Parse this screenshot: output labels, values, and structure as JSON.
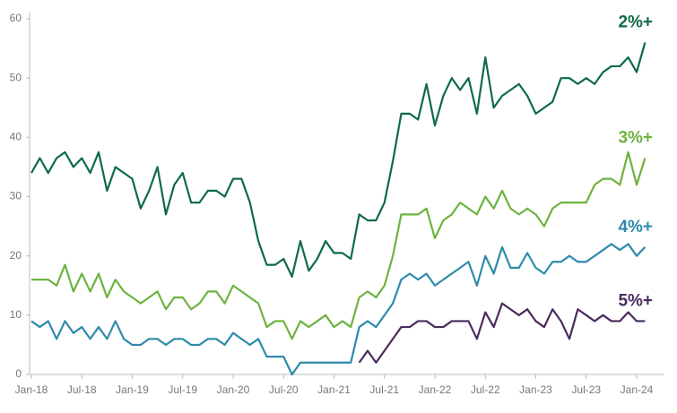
{
  "chart_data": {
    "type": "line",
    "categories": [
      "Jan-18",
      null,
      null,
      null,
      null,
      null,
      "Jul-18",
      null,
      null,
      null,
      null,
      null,
      "Jan-19",
      null,
      null,
      null,
      null,
      null,
      "Jul-19",
      null,
      null,
      null,
      null,
      null,
      "Jan-20",
      null,
      null,
      null,
      null,
      null,
      "Jul-20",
      null,
      null,
      null,
      null,
      null,
      "Jan-21",
      null,
      null,
      null,
      null,
      null,
      "Jul-21",
      null,
      null,
      null,
      null,
      null,
      "Jan-22",
      null,
      null,
      null,
      null,
      null,
      "Jul-22",
      null,
      null,
      null,
      null,
      null,
      "Jan-23",
      null,
      null,
      null,
      null,
      null,
      "Jul-23",
      null,
      null,
      null,
      null,
      null,
      "Jan-24",
      null
    ],
    "series": [
      {
        "name": "2%+",
        "color": "#0e6b45",
        "values": [
          34,
          36.5,
          34,
          36.5,
          37.5,
          35,
          36.5,
          34,
          37.5,
          31,
          35,
          34,
          33,
          28,
          31,
          35,
          27,
          32,
          34,
          29,
          29,
          31,
          31,
          30,
          33,
          33,
          29,
          22.5,
          18.5,
          18.5,
          19.5,
          16.5,
          22.5,
          17.5,
          19.5,
          22.5,
          20.5,
          20.5,
          19.5,
          27,
          26,
          26,
          29,
          36,
          44,
          44,
          43,
          49,
          42,
          47,
          50,
          48,
          50,
          44,
          53.5,
          45,
          47,
          48,
          49,
          47,
          44,
          45,
          46,
          50,
          50,
          49,
          50,
          49,
          51,
          52,
          52,
          53.5,
          51,
          56
        ]
      },
      {
        "name": "3%+",
        "color": "#6db33f",
        "values": [
          16,
          16,
          16,
          15,
          18.5,
          14,
          17,
          14,
          17,
          13,
          16,
          14,
          13,
          12,
          13,
          14,
          11,
          13,
          13,
          11,
          12,
          14,
          14,
          12,
          15,
          14,
          13,
          12,
          8,
          9,
          9,
          6,
          9,
          8,
          9,
          10,
          8,
          9,
          8,
          13,
          14,
          13,
          15,
          20,
          27,
          27,
          27,
          28,
          23,
          26,
          27,
          29,
          28,
          27,
          30,
          28,
          31,
          28,
          27,
          28,
          27,
          25,
          28,
          29,
          29,
          29,
          29,
          32,
          33,
          33,
          32,
          37.5,
          32,
          36.5
        ]
      },
      {
        "name": "4%+",
        "color": "#2e8bab",
        "values": [
          9,
          8,
          9,
          6,
          9,
          7,
          8,
          6,
          8,
          6,
          9,
          6,
          5,
          5,
          6,
          6,
          5,
          6,
          6,
          5,
          5,
          6,
          6,
          5,
          7,
          6,
          5,
          6,
          3,
          3,
          3,
          0,
          2,
          2,
          2,
          2,
          2,
          2,
          2,
          8,
          9,
          8,
          10,
          12,
          16,
          17,
          16,
          17,
          15,
          16,
          17,
          18,
          19,
          15,
          20,
          17,
          21.5,
          18,
          18,
          20.5,
          18,
          17,
          19,
          19,
          20,
          19,
          19,
          20,
          21,
          22,
          21,
          22,
          20,
          21.5
        ]
      },
      {
        "name": "5%+",
        "color": "#4b2a5e",
        "values": [
          null,
          null,
          null,
          null,
          null,
          null,
          null,
          null,
          null,
          null,
          null,
          null,
          null,
          null,
          null,
          null,
          null,
          null,
          null,
          null,
          null,
          null,
          null,
          null,
          null,
          null,
          null,
          null,
          null,
          null,
          null,
          null,
          null,
          null,
          null,
          null,
          null,
          null,
          null,
          2,
          4,
          2,
          4,
          6,
          8,
          8,
          9,
          9,
          8,
          8,
          9,
          9,
          9,
          6,
          10.5,
          8,
          12,
          11,
          10,
          11,
          9,
          8,
          11,
          9,
          6,
          11,
          10,
          9,
          10,
          9,
          9,
          10.5,
          9,
          9
        ]
      }
    ],
    "ylim": [
      0,
      60
    ],
    "yticks": [
      0,
      10,
      20,
      30,
      40,
      50,
      60
    ]
  }
}
